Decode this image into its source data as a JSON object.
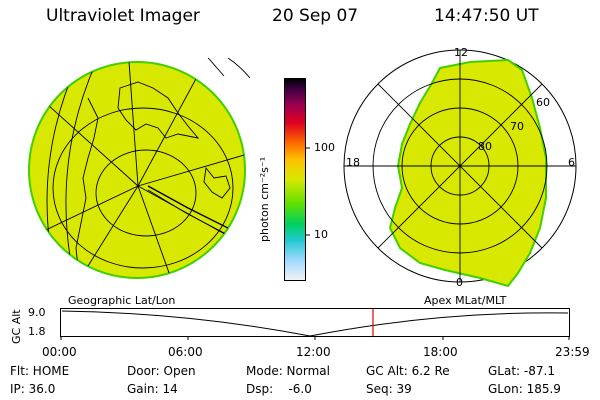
{
  "header": {
    "instrument": "Ultraviolet Imager",
    "date": "20 Sep 07",
    "time": "14:47:50 UT"
  },
  "colorbar": {
    "unit_label": "photon cm⁻²s⁻¹",
    "ticks": [
      "100",
      "10"
    ]
  },
  "polar_plot": {
    "mlt_labels": [
      "12",
      "18",
      "6",
      "0"
    ],
    "lat_labels": [
      "60",
      "70",
      "80"
    ]
  },
  "projection_labels": {
    "left": "Geographic Lat/Lon",
    "right": "Apex MLat/MLT"
  },
  "timeline": {
    "axis_title": "GC Alt",
    "y_ticks": [
      "9.0",
      "1.8"
    ],
    "x_ticks": [
      "00:00",
      "06:00",
      "12:00",
      "18:00",
      "23:59"
    ],
    "current_time_marker": "14:47:50"
  },
  "info": {
    "col1": [
      "Flt: HOME",
      "IP: 36.0"
    ],
    "col2": [
      "Door: Open",
      "Gain: 14"
    ],
    "col3": [
      "Mode: Normal",
      "Dsp:    -6.0"
    ],
    "col4": [
      "GC Alt: 6.2 Re",
      "Seq: 39"
    ],
    "col5": [
      "GLat: -87.1",
      "GLon: 185.9"
    ]
  },
  "colors": {
    "aurora_fill": "#d8e800",
    "aurora_edge": "#40d000",
    "marker": "#e00000"
  }
}
